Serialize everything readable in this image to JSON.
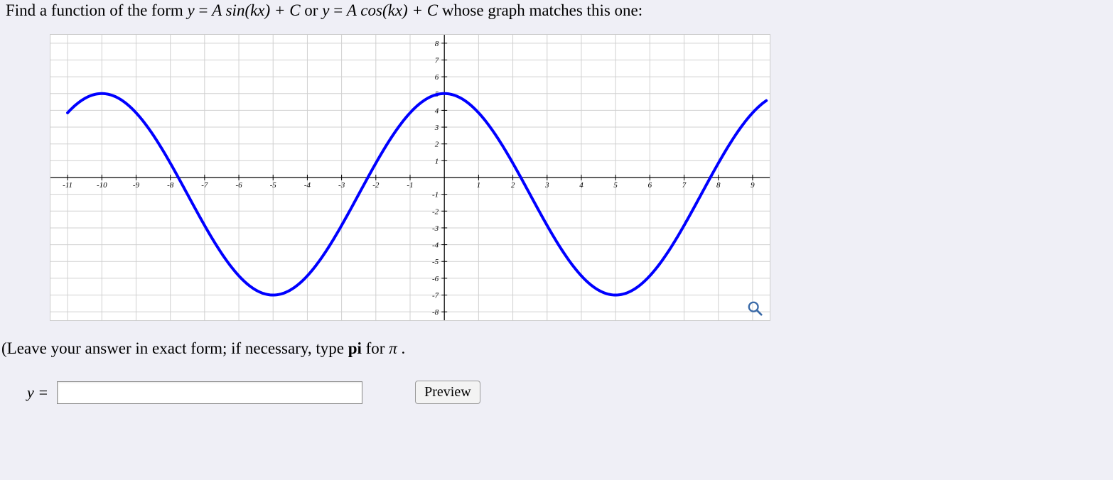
{
  "question": {
    "prefix": "Find a function of the form ",
    "eq1_lhs": "y",
    "eq1_rhs": "A sin(kx) + C",
    "or_text": " or ",
    "eq2_lhs": "y",
    "eq2_rhs": "A cos(kx) + C",
    "suffix": " whose graph matches this one:"
  },
  "chart": {
    "type": "line",
    "xlim": [
      -11.5,
      9.5
    ],
    "ylim": [
      -8.5,
      8.5
    ],
    "xticks": [
      -11,
      -10,
      -9,
      -8,
      -7,
      -6,
      -5,
      -4,
      -3,
      -2,
      -1,
      1,
      2,
      3,
      4,
      5,
      6,
      7,
      8,
      9
    ],
    "yticks": [
      -8,
      -7,
      -6,
      -5,
      -4,
      -3,
      -2,
      -1,
      1,
      2,
      3,
      4,
      5,
      6,
      7,
      8
    ],
    "grid_color": "#d0d0d0",
    "axis_color": "#000000",
    "background_color": "#ffffff",
    "curve_color": "#0000ff",
    "curve_width": 4,
    "tick_font_size": 11,
    "tick_font_style": "italic",
    "function": {
      "A": 6,
      "k": 0.6283185307,
      "C": -1,
      "type": "cos"
    },
    "x_domain": [
      -11,
      9.4
    ]
  },
  "instruction": {
    "prefix": "(Leave your answer in exact form; if necessary, type ",
    "bold": "pi",
    "mid": " for ",
    "pi": "π",
    "suffix": "."
  },
  "answer": {
    "label": "y =",
    "value": "",
    "placeholder": ""
  },
  "preview_button_label": "Preview"
}
